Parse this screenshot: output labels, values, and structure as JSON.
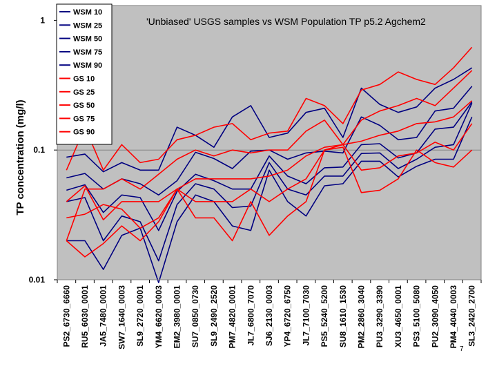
{
  "page_number": "7",
  "chart_data": {
    "type": "line",
    "title": "'Unbiased' USGS samples vs WSM Population TP p5.2 Agchem2",
    "xlabel": "",
    "ylabel": "TP concentration (mg/l)",
    "yscale": "log",
    "ylim": [
      0.01,
      1.3
    ],
    "yticks": [
      0.01,
      0.1,
      1
    ],
    "ytick_labels": [
      "0.01",
      "0.1",
      "1"
    ],
    "plot_background": "#c0c0c0",
    "grid": "horizontal at 0.1",
    "legend_position": "left, spanning top",
    "categories": [
      "PS2_6730_6660",
      "RU5_6030_0001",
      "JA5_7480_0001",
      "SW7_1640_0003",
      "SL9_2720_0001",
      "YM4_6620_0003",
      "EM2_3980_0001",
      "SU7_0850_0730",
      "SL9_2490_2520",
      "PM7_4820_0001",
      "JL7_6800_7070",
      "SJ6_2130_0003",
      "YP4_6720_6750",
      "JL7_7100_7030",
      "PS5_5240_5200",
      "SU8_1610_1530",
      "PM2_2860_3040",
      "PU3_3290_3390",
      "XU3_4650_0001",
      "PS3_5100_5080",
      "PU2_3090_4050",
      "PM4_4040_0003",
      "SL3_2420_2700"
    ],
    "series": [
      {
        "name": "WSM 10",
        "color": "#000080",
        "values": [
          0.02,
          0.02,
          0.012,
          0.022,
          0.025,
          0.0095,
          0.028,
          0.045,
          0.04,
          0.026,
          0.024,
          0.07,
          0.04,
          0.031,
          0.053,
          0.055,
          0.082,
          0.082,
          0.062,
          0.075,
          0.085,
          0.085,
          0.18
        ]
      },
      {
        "name": "WSM 25",
        "color": "#000080",
        "values": [
          0.04,
          0.043,
          0.02,
          0.031,
          0.028,
          0.014,
          0.038,
          0.055,
          0.05,
          0.036,
          0.037,
          0.08,
          0.05,
          0.045,
          0.063,
          0.063,
          0.094,
          0.095,
          0.072,
          0.085,
          0.105,
          0.11,
          0.23
        ]
      },
      {
        "name": "WSM 50",
        "color": "#000080",
        "values": [
          0.049,
          0.054,
          0.033,
          0.045,
          0.043,
          0.024,
          0.048,
          0.065,
          0.058,
          0.05,
          0.05,
          0.09,
          0.063,
          0.055,
          0.073,
          0.074,
          0.11,
          0.112,
          0.087,
          0.095,
          0.145,
          0.15,
          0.235
        ]
      },
      {
        "name": "WSM 75",
        "color": "#000080",
        "values": [
          0.061,
          0.066,
          0.05,
          0.06,
          0.055,
          0.045,
          0.058,
          0.096,
          0.086,
          0.072,
          0.098,
          0.1,
          0.085,
          0.095,
          0.098,
          0.095,
          0.18,
          0.155,
          0.12,
          0.125,
          0.2,
          0.21,
          0.31
        ]
      },
      {
        "name": "WSM 90",
        "color": "#000080",
        "values": [
          0.088,
          0.093,
          0.068,
          0.08,
          0.07,
          0.07,
          0.15,
          0.13,
          0.105,
          0.18,
          0.22,
          0.125,
          0.135,
          0.195,
          0.21,
          0.125,
          0.3,
          0.225,
          0.195,
          0.215,
          0.3,
          0.35,
          0.43
        ]
      },
      {
        "name": "GS 10",
        "color": "#ff0000",
        "values": [
          0.02,
          0.015,
          0.019,
          0.026,
          0.02,
          0.028,
          0.05,
          0.03,
          0.03,
          0.02,
          0.04,
          0.022,
          0.031,
          0.04,
          0.1,
          0.105,
          0.047,
          0.049,
          0.06,
          0.1,
          0.08,
          0.074,
          0.1
        ]
      },
      {
        "name": "GS 25",
        "color": "#ff0000",
        "values": [
          0.03,
          0.032,
          0.038,
          0.035,
          0.025,
          0.03,
          0.05,
          0.04,
          0.04,
          0.04,
          0.05,
          0.04,
          0.05,
          0.06,
          0.1,
          0.11,
          0.07,
          0.073,
          0.09,
          0.095,
          0.115,
          0.1,
          0.16
        ]
      },
      {
        "name": "GS 50",
        "color": "#ff0000",
        "values": [
          0.04,
          0.053,
          0.029,
          0.04,
          0.04,
          0.04,
          0.05,
          0.06,
          0.06,
          0.06,
          0.06,
          0.063,
          0.07,
          0.09,
          0.105,
          0.11,
          0.117,
          0.13,
          0.14,
          0.16,
          0.165,
          0.18,
          0.24
        ]
      },
      {
        "name": "GS 75",
        "color": "#ff0000",
        "values": [
          0.02,
          0.05,
          0.05,
          0.06,
          0.05,
          0.065,
          0.085,
          0.1,
          0.09,
          0.1,
          0.095,
          0.1,
          0.1,
          0.14,
          0.17,
          0.11,
          0.17,
          0.2,
          0.22,
          0.25,
          0.22,
          0.3,
          0.41
        ]
      },
      {
        "name": "GS 90",
        "color": "#ff0000",
        "values": [
          0.07,
          0.15,
          0.07,
          0.11,
          0.08,
          0.085,
          0.12,
          0.13,
          0.15,
          0.16,
          0.12,
          0.135,
          0.14,
          0.25,
          0.22,
          0.16,
          0.29,
          0.32,
          0.4,
          0.35,
          0.32,
          0.43,
          0.62
        ]
      }
    ]
  }
}
